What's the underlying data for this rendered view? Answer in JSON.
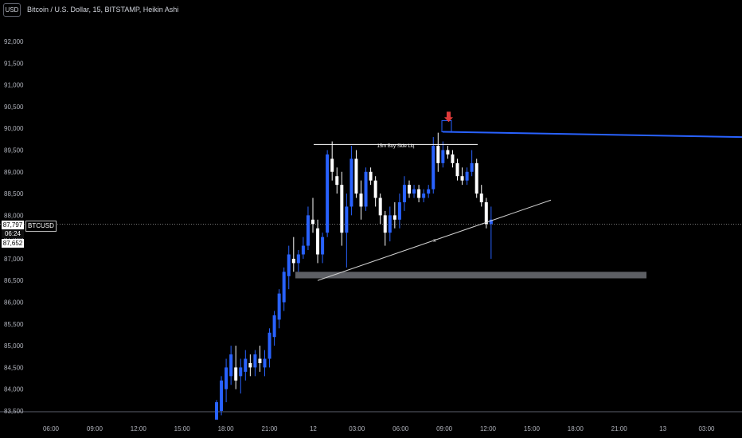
{
  "header": {
    "currency": "USD",
    "symbol_title": "Bitcoin / U.S. Dollar, 15, BITSTAMP, Heikin Ashi"
  },
  "price_panel": {
    "last_price": "87,797",
    "countdown": "06:24",
    "low_price": "87,652",
    "symbol_tag": "BTCUSD"
  },
  "colors": {
    "background": "#000000",
    "bull": "#2962ff",
    "bear": "#ffffff",
    "resistance_line": "#2962ff",
    "arrow": "#e03a3a",
    "zone": "#5d5f64",
    "text": "#d1d4dc"
  },
  "chart_data": {
    "type": "candlestick",
    "style": "Heikin Ashi",
    "ylim": [
      83300,
      92300
    ],
    "y_ticks": [
      83500,
      84000,
      84500,
      85000,
      85500,
      86000,
      86500,
      87000,
      87500,
      88000,
      88500,
      89000,
      89500,
      90000,
      90500,
      91000,
      91500,
      92000
    ],
    "y_tick_labels": [
      "83,500",
      "84,000",
      "84,500",
      "85,000",
      "85,500",
      "86,000",
      "86,500",
      "87,000",
      "87,500",
      "88,000",
      "88,500",
      "89,000",
      "89,500",
      "90,000",
      "90,500",
      "91,000",
      "91,500",
      "92,000"
    ],
    "x_ticks": [
      "06:00",
      "09:00",
      "12:00",
      "15:00",
      "18:00",
      "21:00",
      "12",
      "03:00",
      "06:00",
      "09:00",
      "12:00",
      "15:00",
      "18:00",
      "21:00",
      "13",
      "03:00"
    ],
    "last_price": 87797,
    "candles": [
      {
        "o": 83300,
        "h": 83750,
        "l": 83300,
        "c": 83700
      },
      {
        "o": 83500,
        "h": 84300,
        "l": 83400,
        "c": 84200
      },
      {
        "o": 84000,
        "h": 84700,
        "l": 83700,
        "c": 84500
      },
      {
        "o": 84300,
        "h": 85000,
        "l": 84100,
        "c": 84800
      },
      {
        "o": 84500,
        "h": 85000,
        "l": 84000,
        "c": 84200
      },
      {
        "o": 84300,
        "h": 84700,
        "l": 83900,
        "c": 84500
      },
      {
        "o": 84400,
        "h": 84900,
        "l": 84200,
        "c": 84700
      },
      {
        "o": 84600,
        "h": 84800,
        "l": 84300,
        "c": 84500
      },
      {
        "o": 84500,
        "h": 84900,
        "l": 84300,
        "c": 84800
      },
      {
        "o": 84700,
        "h": 85000,
        "l": 84400,
        "c": 84600
      },
      {
        "o": 84500,
        "h": 84900,
        "l": 84300,
        "c": 84700
      },
      {
        "o": 84700,
        "h": 85400,
        "l": 84500,
        "c": 85300
      },
      {
        "o": 85200,
        "h": 85800,
        "l": 85000,
        "c": 85700
      },
      {
        "o": 85600,
        "h": 86300,
        "l": 85400,
        "c": 86200
      },
      {
        "o": 86000,
        "h": 86800,
        "l": 85800,
        "c": 86700
      },
      {
        "o": 86600,
        "h": 87300,
        "l": 86300,
        "c": 87100
      },
      {
        "o": 87000,
        "h": 87500,
        "l": 86700,
        "c": 86900
      },
      {
        "o": 86900,
        "h": 87200,
        "l": 86700,
        "c": 87100
      },
      {
        "o": 87100,
        "h": 87500,
        "l": 87000,
        "c": 87300
      },
      {
        "o": 87300,
        "h": 88200,
        "l": 87200,
        "c": 88000
      },
      {
        "o": 87900,
        "h": 88400,
        "l": 87600,
        "c": 87800
      },
      {
        "o": 87700,
        "h": 87900,
        "l": 86900,
        "c": 87100
      },
      {
        "o": 87100,
        "h": 87600,
        "l": 86900,
        "c": 87500
      },
      {
        "o": 87600,
        "h": 89500,
        "l": 87500,
        "c": 89400
      },
      {
        "o": 89300,
        "h": 89700,
        "l": 88800,
        "c": 89000
      },
      {
        "o": 88900,
        "h": 89100,
        "l": 88500,
        "c": 88700
      },
      {
        "o": 88700,
        "h": 89000,
        "l": 87300,
        "c": 87600
      },
      {
        "o": 87600,
        "h": 88500,
        "l": 86800,
        "c": 88200
      },
      {
        "o": 88200,
        "h": 89600,
        "l": 88000,
        "c": 89300
      },
      {
        "o": 89300,
        "h": 89500,
        "l": 88400,
        "c": 88500
      },
      {
        "o": 88500,
        "h": 88800,
        "l": 87900,
        "c": 88200
      },
      {
        "o": 88200,
        "h": 89100,
        "l": 88100,
        "c": 89000
      },
      {
        "o": 89000,
        "h": 89100,
        "l": 88700,
        "c": 88800
      },
      {
        "o": 88800,
        "h": 88900,
        "l": 88200,
        "c": 88400
      },
      {
        "o": 88400,
        "h": 88500,
        "l": 87800,
        "c": 88000
      },
      {
        "o": 88000,
        "h": 88100,
        "l": 87300,
        "c": 87600
      },
      {
        "o": 87600,
        "h": 88200,
        "l": 87400,
        "c": 88000
      },
      {
        "o": 88000,
        "h": 88300,
        "l": 87700,
        "c": 87900
      },
      {
        "o": 87900,
        "h": 88500,
        "l": 87700,
        "c": 88300
      },
      {
        "o": 88300,
        "h": 88900,
        "l": 88100,
        "c": 88700
      },
      {
        "o": 88700,
        "h": 88800,
        "l": 88400,
        "c": 88500
      },
      {
        "o": 88500,
        "h": 88700,
        "l": 88400,
        "c": 88600
      },
      {
        "o": 88600,
        "h": 88700,
        "l": 88300,
        "c": 88400
      },
      {
        "o": 88400,
        "h": 88600,
        "l": 88300,
        "c": 88500
      },
      {
        "o": 88500,
        "h": 88700,
        "l": 88400,
        "c": 88600
      },
      {
        "o": 88600,
        "h": 89800,
        "l": 88500,
        "c": 89600
      },
      {
        "o": 89600,
        "h": 89900,
        "l": 89000,
        "c": 89200
      },
      {
        "o": 89200,
        "h": 89700,
        "l": 89100,
        "c": 89500
      },
      {
        "o": 89500,
        "h": 89600,
        "l": 89300,
        "c": 89400
      },
      {
        "o": 89400,
        "h": 89500,
        "l": 89100,
        "c": 89200
      },
      {
        "o": 89200,
        "h": 89300,
        "l": 88800,
        "c": 88900
      },
      {
        "o": 88900,
        "h": 89100,
        "l": 88700,
        "c": 88800
      },
      {
        "o": 88800,
        "h": 89100,
        "l": 88700,
        "c": 89000
      },
      {
        "o": 89000,
        "h": 89500,
        "l": 88900,
        "c": 89200
      },
      {
        "o": 89200,
        "h": 89300,
        "l": 88400,
        "c": 88500
      },
      {
        "o": 88500,
        "h": 88700,
        "l": 88200,
        "c": 88300
      },
      {
        "o": 88300,
        "h": 88400,
        "l": 87700,
        "c": 87800
      },
      {
        "o": 87800,
        "h": 88200,
        "l": 87000,
        "c": 87900
      }
    ],
    "annotations": [
      {
        "type": "label_line",
        "text": "15m Buy Side Liq",
        "price": 89630
      },
      {
        "type": "resistance_line",
        "price_start": 89920,
        "price_end": 89800
      },
      {
        "type": "arrow",
        "direction": "down",
        "price": 90200
      },
      {
        "type": "zone",
        "price_low": 86550,
        "price_high": 86700
      },
      {
        "type": "trendline",
        "price_start": 86500,
        "price_end": 88350
      },
      {
        "type": "marker",
        "text": "x",
        "price": 87450
      }
    ]
  }
}
